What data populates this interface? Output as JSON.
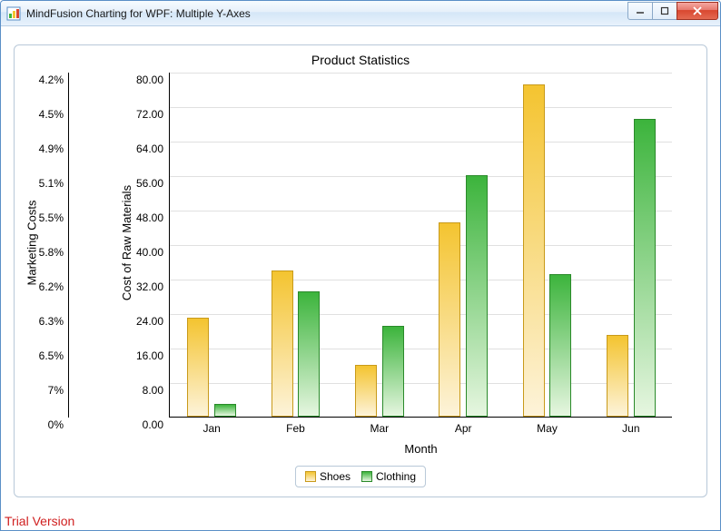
{
  "window": {
    "title": "MindFusion Charting for WPF: Multiple Y-Axes"
  },
  "chart": {
    "type": "bar-grouped",
    "title": "Product Statistics",
    "title_fontsize": 14,
    "x": {
      "title": "Month",
      "categories": [
        "Jan",
        "Feb",
        "Mar",
        "Apr",
        "May",
        "Jun"
      ]
    },
    "y_right_inner": {
      "title": "Cost of Raw Materials",
      "min": 0,
      "max": 80,
      "step": 8,
      "ticks": [
        "0.00",
        "8.00",
        "16.00",
        "24.00",
        "32.00",
        "40.00",
        "48.00",
        "56.00",
        "64.00",
        "72.00",
        "80.00"
      ]
    },
    "y_left_outer": {
      "title": "Marketing Costs",
      "ticks": [
        "0%",
        "7%",
        "6.5%",
        "6.3%",
        "6.2%",
        "5.8%",
        "5.5%",
        "5.1%",
        "4.9%",
        "4.5%",
        "4.2%"
      ]
    },
    "series": [
      {
        "name": "Shoes",
        "values": [
          23,
          34,
          12,
          45,
          77,
          19
        ],
        "fill_top": "#f4c430",
        "fill_bottom": "#fdf3d9",
        "border": "#c89a1a"
      },
      {
        "name": "Clothing",
        "values": [
          3,
          29,
          21,
          56,
          33,
          69
        ],
        "fill_top": "#3cb43c",
        "fill_bottom": "#e6f6e0",
        "border": "#2a8a2a"
      }
    ],
    "grid_color": "#e0e0e0",
    "background": "#ffffff",
    "bar_group_width": 0.58,
    "bar_gap": 0.06
  },
  "footer": {
    "trial_text": "Trial Version"
  },
  "legend": {
    "items": [
      "Shoes",
      "Clothing"
    ]
  }
}
